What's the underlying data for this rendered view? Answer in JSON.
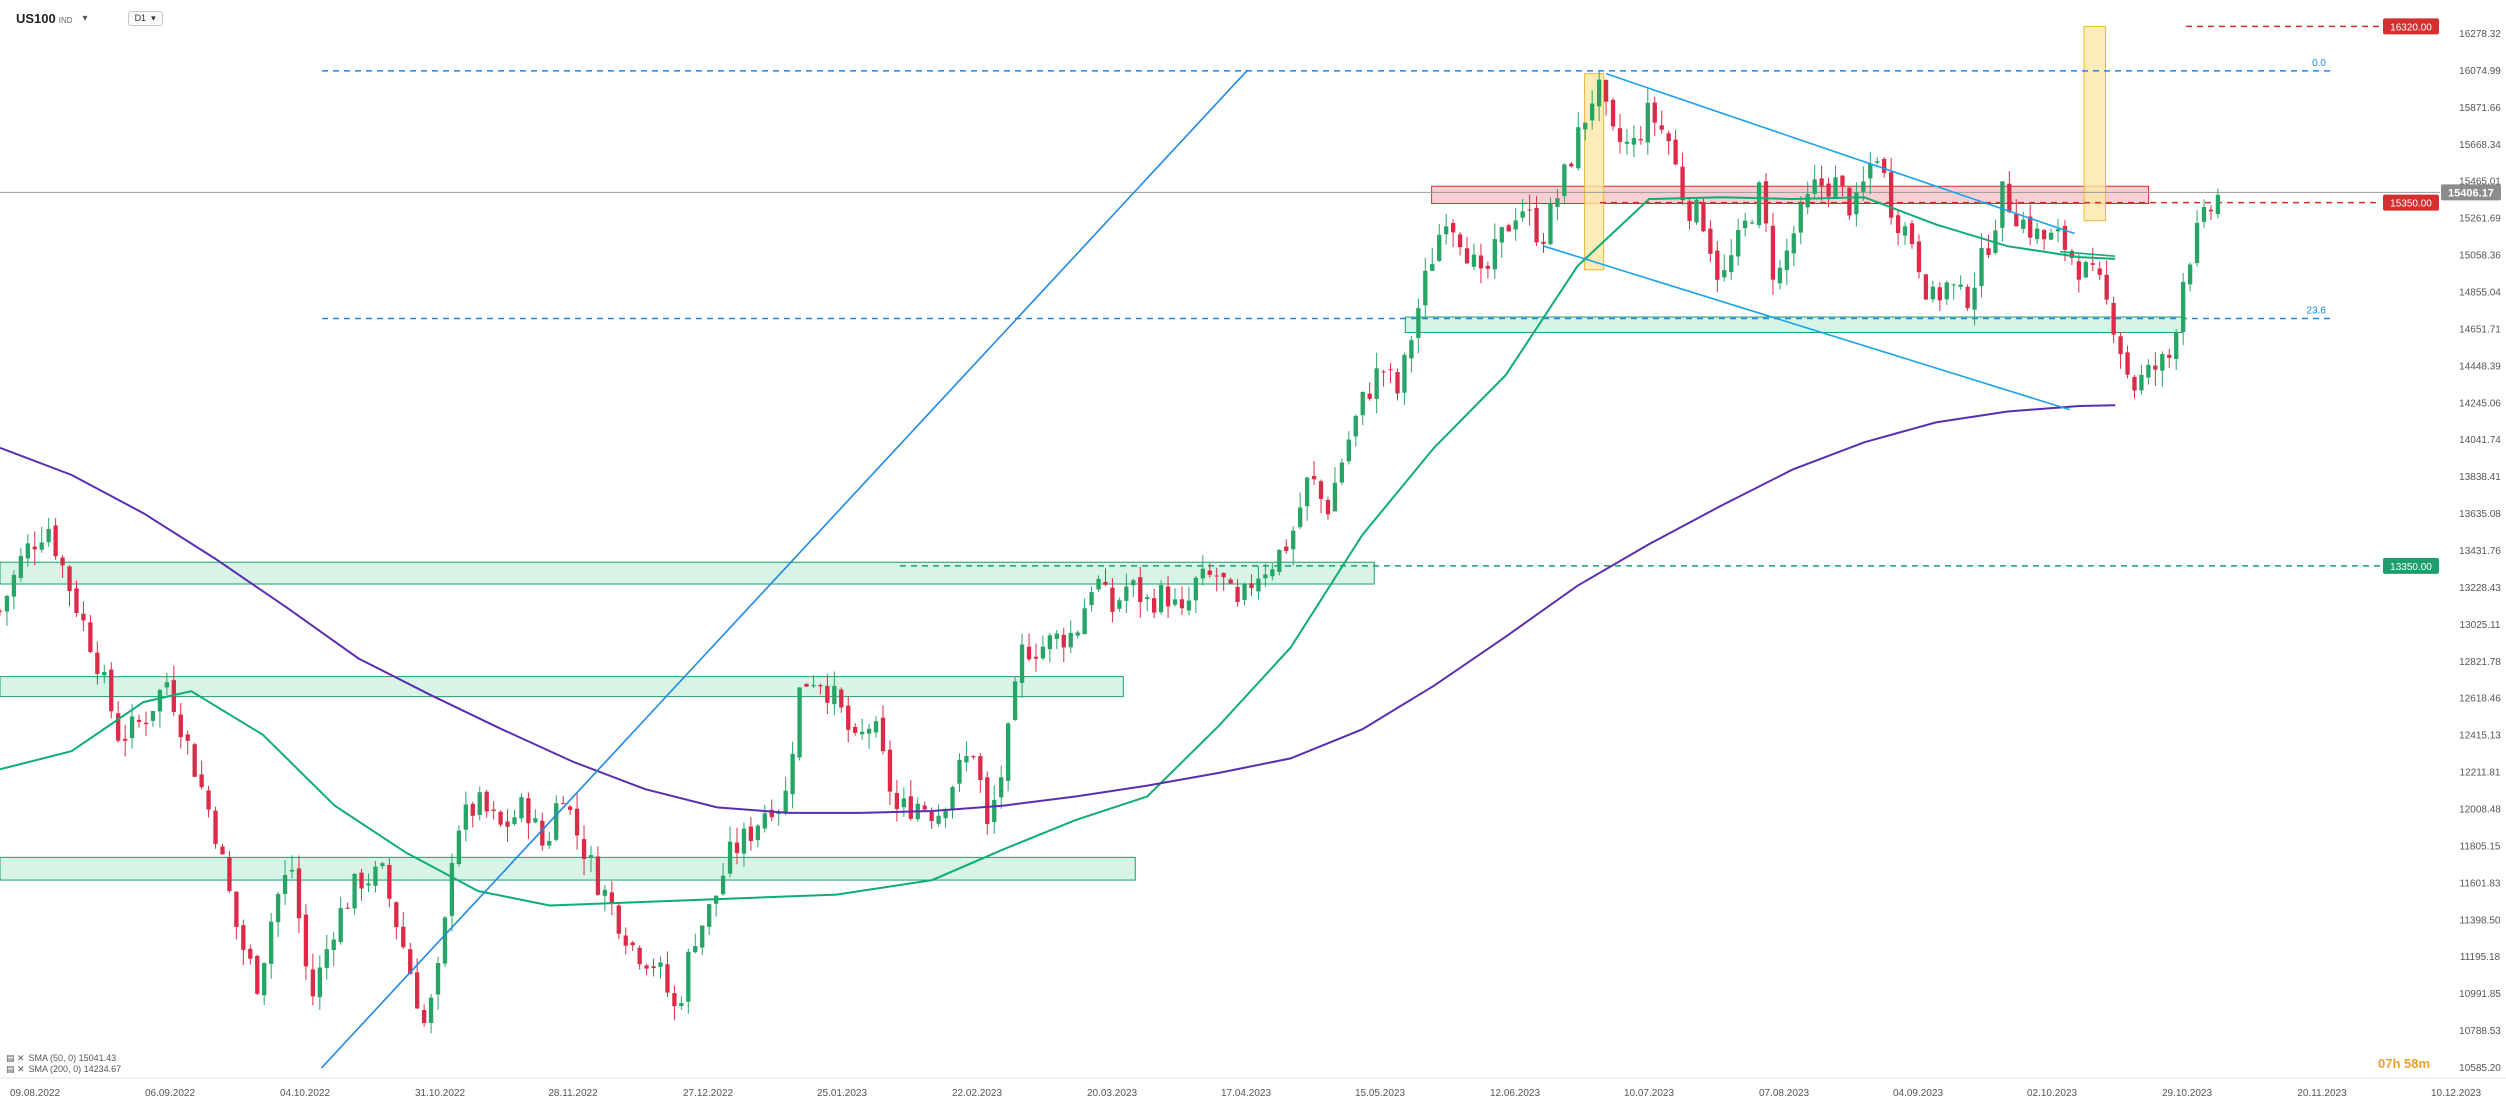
{
  "toolbar": {
    "symbol": "US100",
    "symbol_suffix": "IND",
    "timeframe": "D1"
  },
  "legend": [
    {
      "text": "SMA (50, 0) 15041.43"
    },
    {
      "text": "SMA (200, 0) 14234.67"
    }
  ],
  "timer": "07h 58m",
  "colors": {
    "up": "#27a567",
    "down": "#dc2b48",
    "sma50": "#0fad75",
    "sma200": "#5b2db2",
    "fib": "#1e88e5",
    "resist": "#d32f2f",
    "support": "#1d9e6f",
    "zone_green": "#c6f0dc",
    "zone_red": "#f8c7cb",
    "zone_yellow": "#fbe7a6"
  },
  "chart_data": {
    "type": "candlestick",
    "ylim": [
      10585.2,
      16400
    ],
    "x": [
      "09.08.2022",
      "06.09.2022",
      "04.10.2022",
      "31.10.2022",
      "28.11.2022",
      "27.12.2022",
      "25.01.2023",
      "22.02.2023",
      "20.03.2023",
      "17.04.2023",
      "15.05.2023",
      "12.06.2023",
      "10.07.2023",
      "07.08.2023",
      "04.09.2023",
      "02.10.2023",
      "29.10.2023",
      "20.11.2023",
      "10.12.2023"
    ],
    "y_ticks": [
      "16278.32",
      "16074.99",
      "15871.66",
      "15668.34",
      "15465.01",
      "15261.69",
      "15058.36",
      "14855.04",
      "14651.71",
      "14448.39",
      "14245.06",
      "14041.74",
      "13838.41",
      "13635.08",
      "13431.76",
      "13228.43",
      "13025.11",
      "12821.78",
      "12618.46",
      "12415.13",
      "12211.81",
      "12008.48",
      "11805.15",
      "11601.83",
      "11398.50",
      "11195.18",
      "10991.85",
      "10788.53",
      "10585.20"
    ],
    "current_price": "15406.17",
    "price_levels": [
      {
        "label": "16320.00",
        "value": 16320.0,
        "kind": "resist"
      },
      {
        "label": "15350.00",
        "value": 15350.0,
        "kind": "resist"
      },
      {
        "label": "13350.00",
        "value": 13350.0,
        "kind": "support"
      }
    ],
    "fib_levels": [
      {
        "label": "0.0",
        "value": 16074.99
      },
      {
        "label": "23.6",
        "value": 14712.0
      }
    ],
    "zones": [
      {
        "kind": "green",
        "y_from": 13250,
        "y_to": 13370,
        "x_from": 0.0,
        "x_to": 0.575
      },
      {
        "kind": "green",
        "y_from": 12630,
        "y_to": 12740,
        "x_from": 0.0,
        "x_to": 0.47
      },
      {
        "kind": "green",
        "y_from": 11620,
        "y_to": 11745,
        "x_from": 0.0,
        "x_to": 0.475
      },
      {
        "kind": "green",
        "y_from": 14635,
        "y_to": 14720,
        "x_from": 0.588,
        "x_to": 0.913
      },
      {
        "kind": "red",
        "y_from": 15345,
        "y_to": 15440,
        "x_from": 0.599,
        "x_to": 0.899
      }
    ],
    "series": [
      {
        "name": "SMA (50, 0)",
        "value": 15041.43,
        "points": [
          [
            0.0,
            12230
          ],
          [
            0.03,
            12330
          ],
          [
            0.06,
            12600
          ],
          [
            0.08,
            12660
          ],
          [
            0.11,
            12420
          ],
          [
            0.14,
            12030
          ],
          [
            0.17,
            11770
          ],
          [
            0.2,
            11560
          ],
          [
            0.23,
            11480
          ],
          [
            0.27,
            11500
          ],
          [
            0.31,
            11520
          ],
          [
            0.35,
            11540
          ],
          [
            0.39,
            11620
          ],
          [
            0.42,
            11790
          ],
          [
            0.45,
            11950
          ],
          [
            0.48,
            12080
          ],
          [
            0.51,
            12470
          ],
          [
            0.54,
            12900
          ],
          [
            0.57,
            13520
          ],
          [
            0.6,
            14000
          ],
          [
            0.63,
            14400
          ],
          [
            0.66,
            15000
          ],
          [
            0.69,
            15370
          ],
          [
            0.72,
            15380
          ],
          [
            0.75,
            15370
          ],
          [
            0.78,
            15380
          ],
          [
            0.81,
            15230
          ],
          [
            0.84,
            15110
          ],
          [
            0.87,
            15050
          ],
          [
            0.885,
            15040
          ]
        ]
      },
      {
        "name": "SMA (200, 0)",
        "value": 14234.67,
        "points": [
          [
            0.0,
            14000
          ],
          [
            0.03,
            13850
          ],
          [
            0.06,
            13640
          ],
          [
            0.09,
            13390
          ],
          [
            0.12,
            13120
          ],
          [
            0.15,
            12840
          ],
          [
            0.18,
            12640
          ],
          [
            0.21,
            12450
          ],
          [
            0.24,
            12270
          ],
          [
            0.27,
            12120
          ],
          [
            0.3,
            12020
          ],
          [
            0.33,
            11990
          ],
          [
            0.36,
            11990
          ],
          [
            0.39,
            12000
          ],
          [
            0.42,
            12030
          ],
          [
            0.45,
            12080
          ],
          [
            0.48,
            12140
          ],
          [
            0.51,
            12210
          ],
          [
            0.54,
            12290
          ],
          [
            0.57,
            12450
          ],
          [
            0.6,
            12690
          ],
          [
            0.63,
            12960
          ],
          [
            0.66,
            13240
          ],
          [
            0.69,
            13470
          ],
          [
            0.72,
            13680
          ],
          [
            0.75,
            13880
          ],
          [
            0.78,
            14030
          ],
          [
            0.81,
            14140
          ],
          [
            0.84,
            14200
          ],
          [
            0.87,
            14230
          ],
          [
            0.885,
            14234
          ]
        ]
      }
    ],
    "path": [
      [
        0.0,
        13100
      ],
      [
        0.01,
        13420
      ],
      [
        0.02,
        13580
      ],
      [
        0.03,
        13200
      ],
      [
        0.04,
        12860
      ],
      [
        0.05,
        12400
      ],
      [
        0.06,
        12500
      ],
      [
        0.07,
        12720
      ],
      [
        0.08,
        12300
      ],
      [
        0.09,
        11900
      ],
      [
        0.1,
        11300
      ],
      [
        0.108,
        11050
      ],
      [
        0.115,
        11500
      ],
      [
        0.122,
        11700
      ],
      [
        0.13,
        10950
      ],
      [
        0.14,
        11380
      ],
      [
        0.15,
        11620
      ],
      [
        0.16,
        11650
      ],
      [
        0.17,
        11200
      ],
      [
        0.178,
        10800
      ],
      [
        0.185,
        11200
      ],
      [
        0.19,
        11900
      ],
      [
        0.2,
        12040
      ],
      [
        0.21,
        11900
      ],
      [
        0.22,
        12040
      ],
      [
        0.228,
        11780
      ],
      [
        0.235,
        12150
      ],
      [
        0.24,
        11920
      ],
      [
        0.25,
        11620
      ],
      [
        0.255,
        11500
      ],
      [
        0.265,
        11250
      ],
      [
        0.275,
        11150
      ],
      [
        0.283,
        10880
      ],
      [
        0.29,
        11300
      ],
      [
        0.298,
        11480
      ],
      [
        0.305,
        11750
      ],
      [
        0.315,
        11900
      ],
      [
        0.322,
        12050
      ],
      [
        0.328,
        12020
      ],
      [
        0.335,
        12700
      ],
      [
        0.342,
        12750
      ],
      [
        0.35,
        12600
      ],
      [
        0.358,
        12350
      ],
      [
        0.365,
        12500
      ],
      [
        0.375,
        12000
      ],
      [
        0.385,
        12050
      ],
      [
        0.392,
        11980
      ],
      [
        0.4,
        12200
      ],
      [
        0.408,
        12350
      ],
      [
        0.413,
        11890
      ],
      [
        0.42,
        12260
      ],
      [
        0.428,
        12900
      ],
      [
        0.435,
        12900
      ],
      [
        0.442,
        12950
      ],
      [
        0.45,
        12980
      ],
      [
        0.458,
        13300
      ],
      [
        0.465,
        13100
      ],
      [
        0.472,
        13250
      ],
      [
        0.48,
        13150
      ],
      [
        0.488,
        13200
      ],
      [
        0.495,
        13050
      ],
      [
        0.5,
        13250
      ],
      [
        0.51,
        13300
      ],
      [
        0.518,
        13100
      ],
      [
        0.525,
        13300
      ],
      [
        0.533,
        13380
      ],
      [
        0.54,
        13500
      ],
      [
        0.548,
        13850
      ],
      [
        0.555,
        13650
      ],
      [
        0.563,
        14000
      ],
      [
        0.57,
        14250
      ],
      [
        0.578,
        14450
      ],
      [
        0.585,
        14300
      ],
      [
        0.592,
        14700
      ],
      [
        0.598,
        15000
      ],
      [
        0.605,
        15300
      ],
      [
        0.612,
        15150
      ],
      [
        0.62,
        14900
      ],
      [
        0.628,
        15150
      ],
      [
        0.636,
        15350
      ],
      [
        0.645,
        15150
      ],
      [
        0.652,
        15400
      ],
      [
        0.66,
        15700
      ],
      [
        0.668,
        16000
      ],
      [
        0.675,
        15700
      ],
      [
        0.683,
        15650
      ],
      [
        0.69,
        15850
      ],
      [
        0.698,
        15700
      ],
      [
        0.705,
        15350
      ],
      [
        0.713,
        15250
      ],
      [
        0.72,
        14900
      ],
      [
        0.728,
        15150
      ],
      [
        0.736,
        15400
      ],
      [
        0.743,
        14900
      ],
      [
        0.751,
        15200
      ],
      [
        0.76,
        15450
      ],
      [
        0.768,
        15450
      ],
      [
        0.776,
        15300
      ],
      [
        0.785,
        15650
      ],
      [
        0.792,
        15300
      ],
      [
        0.8,
        15150
      ],
      [
        0.808,
        14800
      ],
      [
        0.815,
        14900
      ],
      [
        0.822,
        14800
      ],
      [
        0.83,
        15050
      ],
      [
        0.838,
        15400
      ],
      [
        0.846,
        15250
      ],
      [
        0.854,
        15150
      ],
      [
        0.862,
        15150
      ],
      [
        0.87,
        15000
      ],
      [
        0.878,
        14900
      ],
      [
        0.884,
        14710
      ],
      [
        0.892,
        14330
      ],
      [
        0.9,
        14420
      ],
      [
        0.908,
        14500
      ],
      [
        0.914,
        14980
      ],
      [
        0.92,
        15200
      ],
      [
        0.928,
        15380
      ]
    ],
    "trend_lines": [
      {
        "kind": "fib-diagonal",
        "from": [
          0.1345,
          10585.2
        ],
        "to": [
          0.522,
          16080
        ]
      },
      {
        "kind": "channel-upper",
        "from": [
          0.672,
          16060
        ],
        "to": [
          0.868,
          15180
        ]
      },
      {
        "kind": "channel-lower",
        "from": [
          0.646,
          15110
        ],
        "to": [
          0.866,
          14210
        ]
      },
      {
        "kind": "sma-extra",
        "from": [
          0.862,
          15080
        ],
        "to": [
          0.885,
          15055
        ]
      }
    ],
    "highlights": [
      {
        "kind": "yellow",
        "x_from": 0.663,
        "x_to": 0.671,
        "y_from": 14980,
        "y_to": 16060
      },
      {
        "kind": "yellow",
        "x_from": 0.872,
        "x_to": 0.881,
        "y_from": 15250,
        "y_to": 16320
      }
    ]
  }
}
